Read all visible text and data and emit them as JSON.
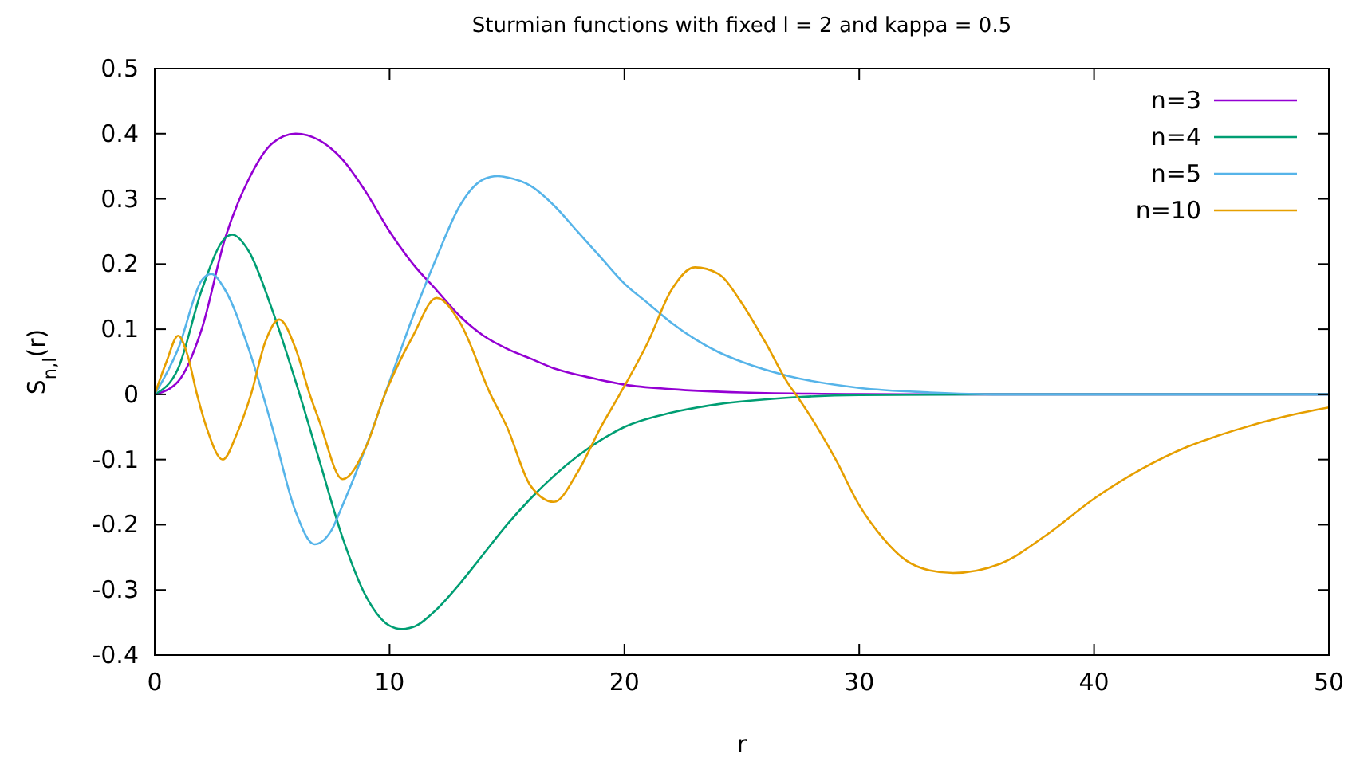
{
  "chart_data": {
    "type": "line",
    "title": "Sturmian functions with fixed l = 2 and kappa = 0.5",
    "xlabel": "r",
    "ylabel": "S$_{n,l}$(r)",
    "xlim": [
      0,
      50
    ],
    "xticks": [
      0,
      10,
      20,
      30,
      40,
      50
    ],
    "ylim": [
      -0.4,
      0.5
    ],
    "yticks": [
      -0.4,
      -0.3,
      -0.2,
      -0.1,
      0,
      0.1,
      0.2,
      0.3,
      0.4,
      0.5
    ],
    "grid": false,
    "legend": "top right",
    "marker": "none",
    "line_style": "solid",
    "series": [
      {
        "name": "n=3",
        "color": "#9400d3",
        "x": [
          0,
          1,
          2,
          3,
          4,
          5,
          6,
          7,
          8,
          9,
          10,
          11,
          12,
          13,
          14,
          15,
          16,
          17,
          18,
          19,
          20,
          22,
          25,
          30,
          35,
          50
        ],
        "values": [
          0,
          0.02,
          0.1,
          0.24,
          0.33,
          0.385,
          0.4,
          0.39,
          0.36,
          0.31,
          0.25,
          0.2,
          0.16,
          0.12,
          0.09,
          0.07,
          0.055,
          0.04,
          0.03,
          0.022,
          0.015,
          0.008,
          0.003,
          0.0005,
          0,
          0
        ]
      },
      {
        "name": "n=4",
        "color": "#009e73",
        "x": [
          0,
          1,
          2,
          3,
          3.3,
          4,
          5,
          6,
          7,
          8,
          9,
          10,
          10.5,
          11,
          12,
          13,
          14,
          15,
          16,
          17,
          18,
          19,
          20,
          22,
          24,
          27,
          30,
          35,
          50
        ],
        "values": [
          0,
          0.04,
          0.16,
          0.24,
          0.245,
          0.22,
          0.13,
          0.02,
          -0.1,
          -0.22,
          -0.31,
          -0.355,
          -0.36,
          -0.357,
          -0.33,
          -0.29,
          -0.245,
          -0.2,
          -0.16,
          -0.125,
          -0.095,
          -0.07,
          -0.05,
          -0.028,
          -0.015,
          -0.005,
          -0.001,
          0,
          0
        ]
      },
      {
        "name": "n=5",
        "color": "#56b4e9",
        "x": [
          0,
          1,
          2,
          2.4,
          3,
          4,
          5,
          6,
          6.8,
          7.5,
          8,
          9,
          10,
          11,
          12,
          13,
          14,
          14.6,
          15,
          16,
          17,
          18,
          19,
          20,
          21,
          22,
          23,
          24,
          25,
          27,
          30,
          33,
          36,
          50
        ],
        "values": [
          0,
          0.07,
          0.175,
          0.185,
          0.16,
          0.07,
          -0.05,
          -0.18,
          -0.23,
          -0.21,
          -0.17,
          -0.08,
          0.02,
          0.12,
          0.21,
          0.29,
          0.33,
          0.335,
          0.333,
          0.32,
          0.29,
          0.25,
          0.21,
          0.17,
          0.14,
          0.11,
          0.085,
          0.065,
          0.05,
          0.028,
          0.01,
          0.003,
          0,
          0
        ]
      },
      {
        "name": "n=10",
        "color": "#e69f00",
        "x": [
          0,
          0.5,
          1,
          1.4,
          1.8,
          2.2,
          2.9,
          3.5,
          4.1,
          4.7,
          5.3,
          6,
          6.6,
          7,
          8,
          9,
          9.8,
          11,
          12,
          13,
          14.3,
          15,
          16,
          17,
          18,
          19,
          19.8,
          21,
          22,
          23,
          24,
          25,
          26,
          27,
          27.3,
          29,
          30,
          31,
          32,
          33,
          34,
          36,
          38,
          40,
          42,
          44,
          46,
          48,
          50
        ],
        "values": [
          0,
          0.05,
          0.09,
          0.06,
          0,
          -0.05,
          -0.1,
          -0.06,
          0,
          0.08,
          0.115,
          0.07,
          0,
          -0.04,
          -0.13,
          -0.08,
          0,
          0.09,
          0.148,
          0.11,
          0,
          -0.05,
          -0.14,
          -0.165,
          -0.12,
          -0.05,
          0,
          0.08,
          0.16,
          0.195,
          0.185,
          0.14,
          0.08,
          0.015,
          0,
          -0.1,
          -0.17,
          -0.22,
          -0.255,
          -0.27,
          -0.274,
          -0.26,
          -0.215,
          -0.16,
          -0.115,
          -0.08,
          -0.055,
          -0.035,
          -0.02
        ]
      }
    ]
  }
}
